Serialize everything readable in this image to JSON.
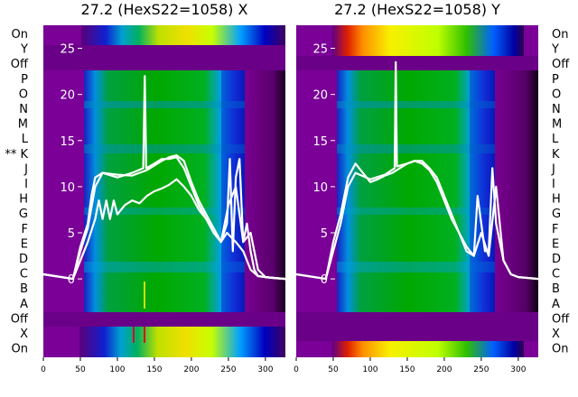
{
  "chart_data": [
    {
      "type": "line",
      "title": "27.2 (HexS22=1058) X",
      "xlim": [
        0,
        327
      ],
      "x_ticks": [
        0,
        50,
        100,
        150,
        200,
        250,
        300
      ],
      "ylim": [
        -8.5,
        27.5
      ],
      "y_ticks": [
        0,
        5,
        10,
        15,
        20,
        25
      ],
      "background": "heatmap",
      "line_color": "#ffffff",
      "series": [
        {
          "x": [
            0,
            40,
            50,
            60,
            65,
            70,
            80,
            100,
            120,
            140,
            150,
            160,
            170,
            180,
            190,
            200,
            210,
            220,
            230,
            240,
            248,
            252,
            256,
            260,
            265,
            270,
            275,
            280,
            285,
            290,
            300,
            310,
            327
          ],
          "y": [
            0.5,
            0,
            3.5,
            6,
            9,
            11,
            11.5,
            11.3,
            11.2,
            11.8,
            12.3,
            12.8,
            13.2,
            13.4,
            12.8,
            10.5,
            8.5,
            7,
            5.5,
            4,
            6,
            13,
            3,
            11,
            13,
            4,
            6,
            3,
            1,
            0.3,
            0.2,
            0.1,
            0
          ]
        },
        {
          "x": [
            0,
            40,
            50,
            60,
            70,
            75,
            80,
            85,
            90,
            95,
            100,
            110,
            120,
            130,
            140,
            150,
            160,
            170,
            180,
            190,
            200,
            210,
            220,
            230,
            240,
            248,
            260,
            270,
            280,
            290,
            300,
            327
          ],
          "y": [
            0.5,
            0,
            2,
            4,
            6.5,
            8.5,
            6.5,
            8.5,
            6.5,
            8.5,
            7,
            8,
            8.5,
            8.2,
            9,
            9.5,
            9.8,
            10.2,
            10.8,
            10,
            9,
            7.5,
            6.5,
            5.5,
            4,
            5,
            4,
            3,
            1,
            0.3,
            0.2,
            0
          ]
        },
        {
          "x": [
            0,
            40,
            50,
            60,
            70,
            80,
            100,
            120,
            135,
            137,
            139,
            150,
            160,
            170,
            180,
            190,
            200,
            210,
            220,
            230,
            240,
            250,
            260,
            270,
            280,
            290,
            300,
            327
          ],
          "y": [
            0.5,
            0,
            3,
            5.5,
            10,
            11.5,
            11,
            11.5,
            12,
            22,
            12,
            12.5,
            13,
            13,
            13.2,
            12,
            10,
            8,
            6.5,
            5,
            4,
            8,
            10,
            4,
            5,
            1,
            0.2,
            0
          ]
        }
      ]
    },
    {
      "type": "line",
      "title": "27.2 (HexS22=1058) Y",
      "xlim": [
        0,
        327
      ],
      "x_ticks": [
        0,
        50,
        100,
        150,
        200,
        250,
        300
      ],
      "ylim": [
        -8.5,
        27.5
      ],
      "y_ticks": [
        0,
        5,
        10,
        15,
        20,
        25
      ],
      "background": "heatmap",
      "line_color": "#ffffff",
      "series": [
        {
          "x": [
            0,
            40,
            50,
            60,
            65,
            70,
            80,
            90,
            100,
            110,
            120,
            130,
            140,
            150,
            160,
            170,
            180,
            190,
            200,
            210,
            220,
            230,
            240,
            245,
            250,
            255,
            260,
            265,
            270,
            280,
            290,
            300,
            327
          ],
          "y": [
            0.5,
            0,
            4,
            7,
            9,
            11,
            12.5,
            11.5,
            10.5,
            10.8,
            11.2,
            11.5,
            12,
            12.5,
            12.8,
            12.8,
            12,
            11,
            9,
            7,
            5,
            3.5,
            2.5,
            9,
            6,
            3,
            3,
            12,
            6,
            2,
            0.5,
            0.2,
            0
          ]
        },
        {
          "x": [
            0,
            40,
            50,
            60,
            70,
            80,
            100,
            120,
            133,
            134.5,
            136,
            150,
            160,
            170,
            180,
            190,
            200,
            210,
            220,
            230,
            240,
            250,
            260,
            270,
            280,
            290,
            300,
            327
          ],
          "y": [
            0.5,
            0,
            3,
            6,
            10,
            11.5,
            10.8,
            11.3,
            12,
            23.5,
            12.2,
            12.5,
            12.8,
            12.5,
            11.8,
            10.5,
            8.5,
            6.5,
            5,
            3,
            2.5,
            5,
            2.5,
            10,
            2,
            0.5,
            0.2,
            0
          ]
        }
      ]
    }
  ],
  "row_labels": {
    "left": [
      "On",
      "Y",
      "Off",
      "P",
      "O",
      "N",
      "M",
      "L",
      "** K",
      "J",
      "I",
      "H",
      "G",
      "F",
      "E",
      "D",
      "C",
      "B",
      "A",
      "Off",
      "X",
      "On"
    ],
    "right": [
      "On",
      "Y",
      "Off",
      "P",
      "O",
      "N",
      "M",
      "L",
      "K",
      "J",
      "I",
      "H",
      "G",
      "F",
      "E",
      "D",
      "C",
      "B",
      "A",
      "Off",
      "X",
      "On"
    ]
  }
}
